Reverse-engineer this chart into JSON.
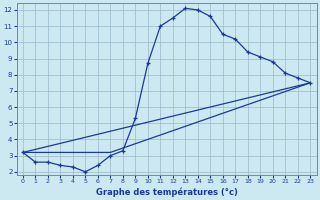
{
  "xlabel": "Graphe des températures (°c)",
  "bg_color": "#cce8f0",
  "grid_color": "#9ab8c8",
  "line_color": "#1a3a9a",
  "xlim": [
    -0.5,
    23.5
  ],
  "ylim": [
    1.8,
    12.4
  ],
  "xticks": [
    0,
    1,
    2,
    3,
    4,
    5,
    6,
    7,
    8,
    9,
    10,
    11,
    12,
    13,
    14,
    15,
    16,
    17,
    18,
    19,
    20,
    21,
    22,
    23
  ],
  "yticks": [
    2,
    3,
    4,
    5,
    6,
    7,
    8,
    9,
    10,
    11,
    12
  ],
  "line1_x": [
    0,
    1,
    2,
    3,
    4,
    5,
    6,
    7,
    8,
    9,
    10,
    11,
    12,
    13,
    14,
    15,
    16,
    17,
    18,
    19,
    20,
    21,
    22,
    23
  ],
  "line1_y": [
    3.2,
    2.6,
    2.6,
    2.4,
    2.3,
    2.0,
    2.4,
    3.0,
    3.3,
    5.3,
    8.7,
    11.0,
    11.5,
    12.1,
    12.0,
    11.6,
    10.5,
    10.2,
    9.4,
    9.1,
    8.8,
    8.1,
    7.8,
    7.5
  ],
  "line2_x": [
    0,
    23
  ],
  "line2_y": [
    3.2,
    7.5
  ],
  "line3_x": [
    0,
    7,
    23
  ],
  "line3_y": [
    3.2,
    3.2,
    7.5
  ]
}
